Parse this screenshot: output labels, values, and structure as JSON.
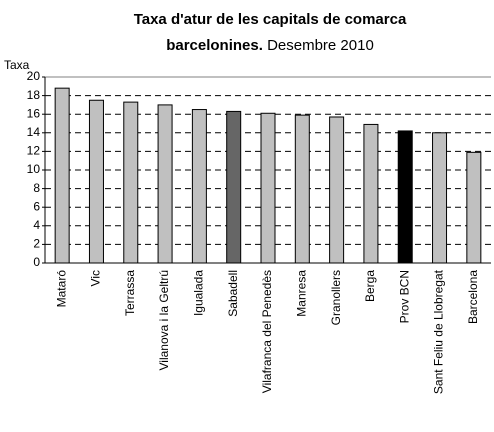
{
  "chart_data": {
    "type": "bar",
    "title": [
      "Taxa d'atur de les capitals de comarca",
      "barcelonines."
    ],
    "subtitle": "Desembre 2010",
    "y_label": "Taxa",
    "categories": [
      "Mataró",
      "Vic",
      "Terrassa",
      "Vilanova i la Geltrú",
      "Igualada",
      "Sabadell",
      "Vilafranca del Penedès",
      "Manresa",
      "Granollers",
      "Berga",
      "Prov BCN",
      "Sant Feliu de Llobregat",
      "Barcelona"
    ],
    "values": [
      18.8,
      17.5,
      17.3,
      17.0,
      16.5,
      16.3,
      16.1,
      15.9,
      15.7,
      14.9,
      14.2,
      14.0,
      11.9
    ],
    "colors": [
      "#c0c0c0",
      "#c0c0c0",
      "#c0c0c0",
      "#c0c0c0",
      "#c0c0c0",
      "#666666",
      "#c0c0c0",
      "#c0c0c0",
      "#c0c0c0",
      "#c0c0c0",
      "#000000",
      "#c0c0c0",
      "#c0c0c0"
    ],
    "ylim": [
      0,
      20
    ],
    "yticks": [
      0,
      2,
      4,
      6,
      8,
      10,
      12,
      14,
      16,
      18,
      20
    ],
    "grid": true
  }
}
